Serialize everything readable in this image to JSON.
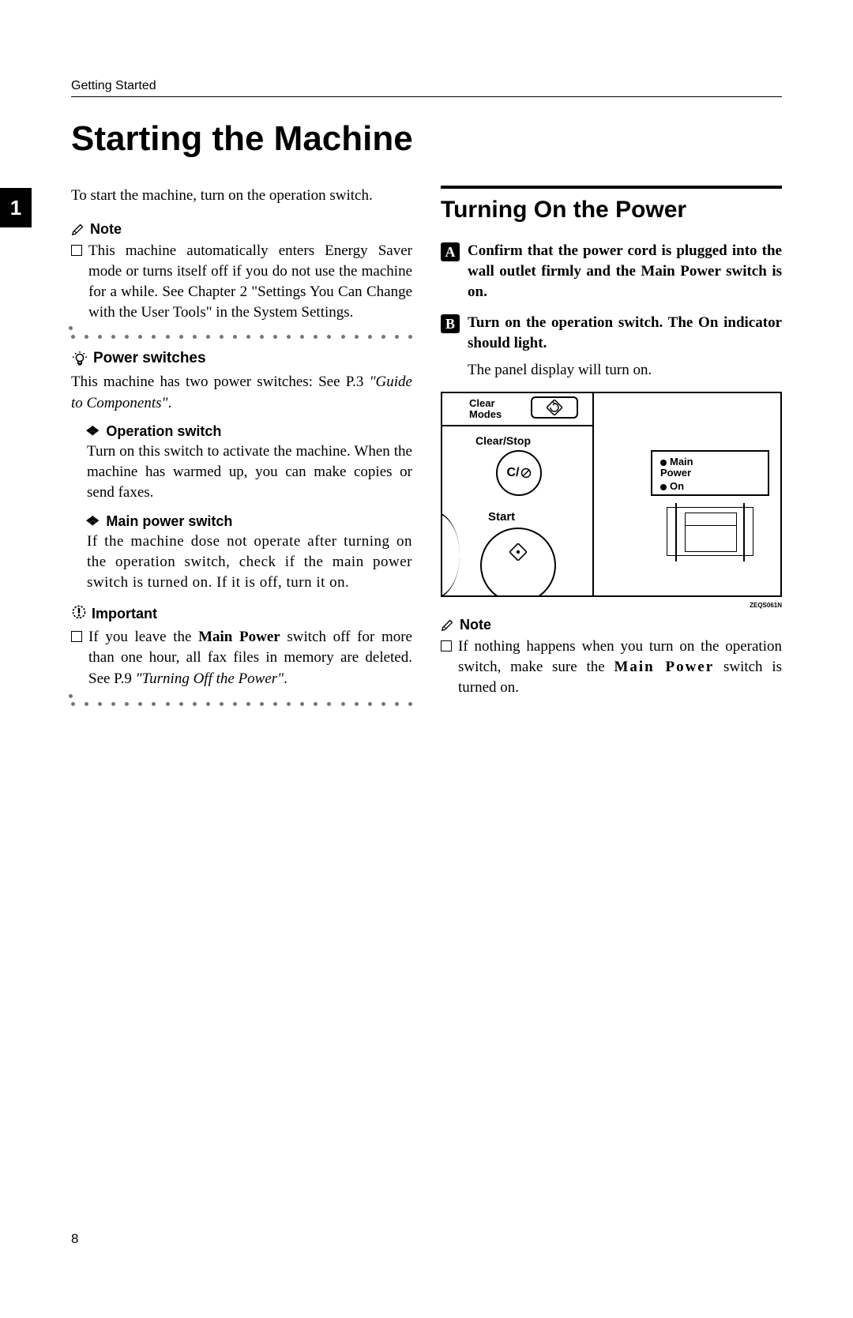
{
  "header": "Getting Started",
  "chapterTab": "1",
  "title": "Starting the Machine",
  "pageNumber": "8",
  "col1": {
    "intro": "To start the machine, turn on the operation switch.",
    "noteLabel": "Note",
    "noteBody": "This machine automatically enters Energy Saver mode or turns itself off if you do not use the machine for a while. See Chapter 2 \"Settings You Can Change with the User Tools\" in the System Settings.",
    "hintLabel": "Power switches",
    "hintBody_a": "This machine has two power switches: See P.3 ",
    "hintBody_b": "\"Guide to Components\"",
    "hintBody_c": ".",
    "opSwitchLabel": "Operation switch",
    "opSwitchBody": "Turn on this switch to activate the machine. When the machine has warmed up, you can make copies or send faxes.",
    "mainSwitchLabel": "Main power switch",
    "mainSwitchBody": "If the machine dose not operate after turning on the operation switch, check if the main power switch is turned on. If it is off, turn it on.",
    "importantLabel": "Important",
    "importantBody_a": "If you leave the ",
    "importantBody_b": "Main Power",
    "importantBody_c": " switch off for more than one hour, all fax files in memory are deleted. See P.9 ",
    "importantBody_d": "\"Turning Off the Power\"",
    "importantBody_e": "."
  },
  "col2": {
    "heading": "Turning On the Power",
    "step1": "Confirm that the power cord is plugged into the wall outlet firmly and the Main Power switch is on.",
    "step2": "Turn on the operation switch. The On indicator should light.",
    "step2follow": "The panel display will turn on.",
    "diagram": {
      "clearModes": "Clear\nModes",
      "clearStop": "Clear/Stop",
      "cBtn": "C/",
      "start": "Start",
      "mainPower": "Main\nPower",
      "on": "On",
      "code": "ZEQS061N"
    },
    "noteLabel": "Note",
    "noteBody_a": "If nothing happens when you turn on the operation switch, make sure the ",
    "noteBody_b": "Main Power",
    "noteBody_c": " switch is turned on."
  },
  "style": {
    "dotColor": "#777777",
    "dotCount": 26
  }
}
